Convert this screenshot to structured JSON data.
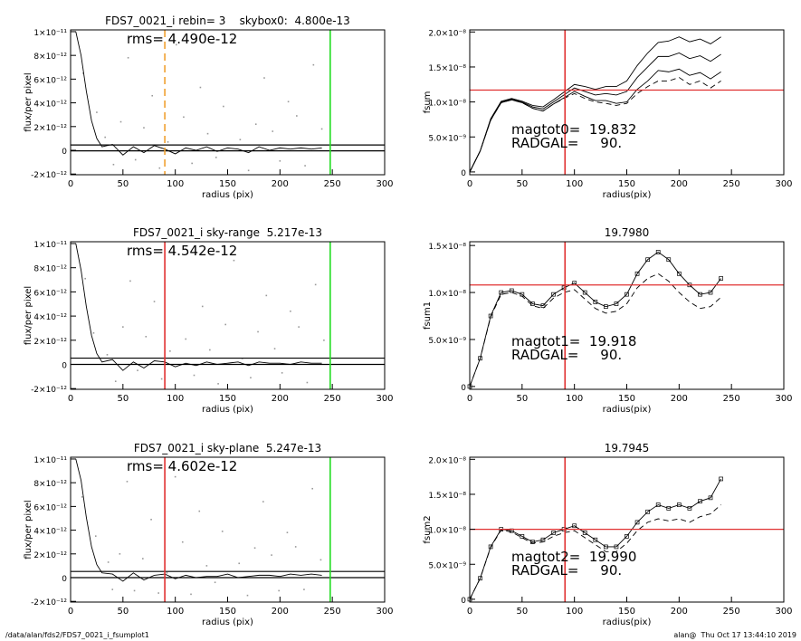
{
  "chart_data": [
    {
      "type": "profile",
      "title": "FDS7_0021_i rebin= 3    skybox0:  4.800e-13",
      "annotations": [
        "rms= 4.490e-12"
      ],
      "xlabel": "radius (pix)",
      "ylabel": "flux/per pixel",
      "xlim": [
        0,
        300
      ],
      "ylim": [
        -2.06e-12,
        1.015e-11
      ],
      "xticks": [
        0,
        50,
        100,
        150,
        200,
        250,
        300
      ],
      "yticks": [
        {
          "value": -2e-12,
          "label": "-2×10⁻¹²"
        },
        0,
        {
          "value": 2e-12,
          "label": "2×10⁻¹²"
        },
        {
          "value": 4e-12,
          "label": "4×10⁻¹²"
        },
        {
          "value": 6e-12,
          "label": "6×10⁻¹²"
        },
        {
          "value": 8e-12,
          "label": "8×10⁻¹²"
        },
        {
          "value": 1e-11,
          "label": "1×10⁻¹¹"
        }
      ],
      "points": {
        "color": "#999999",
        "x": [
          12,
          25,
          33,
          41,
          48,
          55,
          62,
          70,
          78,
          85,
          93,
          101,
          108,
          116,
          124,
          131,
          139,
          146,
          154,
          162,
          170,
          177,
          185,
          193,
          200,
          208,
          216,
          224,
          232,
          240
        ],
        "values": [
          6.5e-12,
          3.2e-12,
          1.1e-12,
          -1.2e-12,
          2.4e-12,
          7.8e-12,
          -8e-13,
          1.9e-12,
          4.6e-12,
          -1.5e-12,
          7e-13,
          8.9e-12,
          2.8e-12,
          -1.1e-12,
          5.3e-12,
          1.4e-12,
          -6e-13,
          3.7e-12,
          9.4e-12,
          9e-13,
          -1.7e-12,
          2.2e-12,
          6.1e-12,
          1.6e-12,
          -9e-13,
          4.1e-12,
          2.9e-12,
          -1.3e-12,
          7.2e-12,
          1.8e-12
        ]
      },
      "x": [
        5,
        10,
        15,
        20,
        25,
        30,
        40,
        50,
        60,
        70,
        80,
        90,
        100,
        110,
        120,
        130,
        140,
        150,
        160,
        170,
        180,
        190,
        200,
        210,
        220,
        230,
        240
      ],
      "series": [
        {
          "color": "#000000",
          "values": [
            1e-11,
            8e-12,
            5e-12,
            2.5e-12,
            1e-12,
            3e-13,
            5e-13,
            -4e-13,
            3e-13,
            -2e-13,
            4e-13,
            1e-13,
            -3e-13,
            2e-13,
            0,
            3e-13,
            -1e-13,
            2e-13,
            1e-13,
            -2e-13,
            3e-13,
            0,
            2e-13,
            1e-13,
            2e-13,
            1e-13,
            2e-13
          ]
        }
      ],
      "hlines": [
        {
          "value": 4.5e-13,
          "color": "#000000"
        },
        {
          "value": -5e-14,
          "color": "#000000"
        }
      ],
      "vlines": [
        {
          "value": 90,
          "color": "#f0a030",
          "dash": true
        },
        {
          "value": 248,
          "color": "#22dd22"
        }
      ]
    },
    {
      "type": "profile",
      "title": "FDS7_0021_i sky-range  5.217e-13",
      "annotations": [
        "rms= 4.542e-12"
      ],
      "xlabel": "radius (pix)",
      "ylabel": "flux/per pixel",
      "xlim": [
        0,
        300
      ],
      "ylim": [
        -2.06e-12,
        1.015e-11
      ],
      "xticks": [
        0,
        50,
        100,
        150,
        200,
        250,
        300
      ],
      "yticks": [
        {
          "value": -2e-12,
          "label": "-2×10⁻¹²"
        },
        0,
        {
          "value": 2e-12,
          "label": "2×10⁻¹²"
        },
        {
          "value": 4e-12,
          "label": "4×10⁻¹²"
        },
        {
          "value": 6e-12,
          "label": "6×10⁻¹²"
        },
        {
          "value": 8e-12,
          "label": "8×10⁻¹²"
        },
        {
          "value": 1e-11,
          "label": "1×10⁻¹¹"
        }
      ],
      "points": {
        "color": "#999999",
        "x": [
          14,
          22,
          35,
          43,
          50,
          57,
          64,
          72,
          80,
          87,
          95,
          103,
          110,
          118,
          126,
          133,
          141,
          148,
          156,
          164,
          172,
          179,
          187,
          195,
          202,
          210,
          218,
          226,
          234,
          242
        ],
        "values": [
          7.1e-12,
          2.6e-12,
          8e-13,
          -1.4e-12,
          3.1e-12,
          6.9e-12,
          -5e-13,
          2.3e-12,
          5.2e-12,
          -1.2e-12,
          1.1e-12,
          9.1e-12,
          2.1e-12,
          -9e-13,
          4.8e-12,
          1.2e-12,
          -1.6e-12,
          3.3e-12,
          8.6e-12,
          5e-13,
          -1.1e-12,
          2.7e-12,
          5.7e-12,
          1.3e-12,
          -7e-13,
          4.4e-12,
          3.1e-12,
          -1.5e-12,
          6.6e-12,
          2e-12
        ]
      },
      "x": [
        5,
        10,
        15,
        20,
        25,
        30,
        40,
        50,
        60,
        70,
        80,
        90,
        100,
        110,
        120,
        130,
        140,
        150,
        160,
        170,
        180,
        190,
        200,
        210,
        220,
        230,
        240
      ],
      "series": [
        {
          "color": "#000000",
          "values": [
            1e-11,
            7.8e-12,
            4.8e-12,
            2.4e-12,
            9e-13,
            2e-13,
            4e-13,
            -5e-13,
            2e-13,
            -3e-13,
            3e-13,
            2e-13,
            -2e-13,
            1e-13,
            -1e-13,
            2e-13,
            0,
            1e-13,
            2e-13,
            -1e-13,
            2e-13,
            1e-13,
            1e-13,
            0,
            2e-13,
            1e-13,
            1e-13
          ]
        }
      ],
      "hlines": [
        {
          "value": 5.2e-13,
          "color": "#000000"
        },
        {
          "value": 0,
          "color": "#000000"
        }
      ],
      "vlines": [
        {
          "value": 90,
          "color": "#e03030"
        },
        {
          "value": 248,
          "color": "#22dd22"
        }
      ]
    },
    {
      "type": "profile",
      "title": "FDS7_0021_i sky-plane  5.247e-13",
      "annotations": [
        "rms= 4.602e-12"
      ],
      "xlabel": "radius (pix)",
      "ylabel": "flux/per pixel",
      "xlim": [
        0,
        300
      ],
      "ylim": [
        -2.06e-12,
        1.015e-11
      ],
      "xticks": [
        0,
        50,
        100,
        150,
        200,
        250,
        300
      ],
      "yticks": [
        {
          "value": -2e-12,
          "label": "-2×10⁻¹²"
        },
        0,
        {
          "value": 2e-12,
          "label": "2×10⁻¹²"
        },
        {
          "value": 4e-12,
          "label": "4×10⁻¹²"
        },
        {
          "value": 6e-12,
          "label": "6×10⁻¹²"
        },
        {
          "value": 8e-12,
          "label": "8×10⁻¹²"
        },
        {
          "value": 1e-11,
          "label": "1×10⁻¹¹"
        }
      ],
      "points": {
        "color": "#999999",
        "x": [
          11,
          24,
          36,
          40,
          47,
          54,
          61,
          69,
          77,
          84,
          92,
          100,
          107,
          115,
          123,
          130,
          138,
          145,
          153,
          161,
          169,
          176,
          184,
          192,
          199,
          207,
          215,
          223,
          231,
          239
        ],
        "values": [
          6.8e-12,
          3.5e-12,
          1.3e-12,
          -1e-12,
          2e-12,
          8.1e-12,
          -1.1e-12,
          1.6e-12,
          4.9e-12,
          -1.3e-12,
          4e-13,
          8.5e-12,
          3e-12,
          -1.4e-12,
          5.6e-12,
          1e-12,
          -4e-13,
          3.9e-12,
          9.2e-12,
          1.2e-12,
          -1.5e-12,
          2.5e-12,
          6.4e-12,
          1.9e-12,
          -1.1e-12,
          3.8e-12,
          2.6e-12,
          -1e-12,
          7.5e-12,
          1.5e-12
        ]
      },
      "x": [
        5,
        10,
        15,
        20,
        25,
        30,
        40,
        50,
        60,
        70,
        80,
        90,
        100,
        110,
        120,
        130,
        140,
        150,
        160,
        170,
        180,
        190,
        200,
        210,
        220,
        230,
        240
      ],
      "series": [
        {
          "color": "#000000",
          "values": [
            1e-11,
            8.2e-12,
            5.1e-12,
            2.6e-12,
            1.1e-12,
            4e-13,
            3e-13,
            -3e-13,
            4e-13,
            -2e-13,
            2e-13,
            3e-13,
            -1e-13,
            2e-13,
            0,
            1e-13,
            1e-13,
            3e-13,
            0,
            1e-13,
            2e-13,
            2e-13,
            1e-13,
            3e-13,
            2e-13,
            3e-13,
            2e-13
          ]
        }
      ],
      "hlines": [
        {
          "value": 5.2e-13,
          "color": "#000000"
        },
        {
          "value": 0,
          "color": "#000000"
        }
      ],
      "vlines": [
        {
          "value": 90,
          "color": "#e03030"
        },
        {
          "value": 248,
          "color": "#22dd22"
        }
      ]
    },
    {
      "type": "fsum",
      "annotations": [
        "magtot0=  19.832",
        "RADGAL=     90."
      ],
      "xlabel": "radius(pix)",
      "ylabel": "fsum",
      "xlim": [
        0,
        300
      ],
      "ylim": [
        -4e-10,
        2.03e-08
      ],
      "xticks": [
        0,
        50,
        100,
        150,
        200,
        250,
        300
      ],
      "yticks": [
        0,
        {
          "value": 5e-09,
          "label": "5.0×10⁻⁹"
        },
        {
          "value": 1e-08,
          "label": "1.0×10⁻⁸"
        },
        {
          "value": 1.5e-08,
          "label": "1.5×10⁻⁸"
        },
        {
          "value": 2e-08,
          "label": "2.0×10⁻⁸"
        }
      ],
      "x": [
        0,
        10,
        20,
        30,
        40,
        50,
        60,
        70,
        80,
        90,
        100,
        110,
        120,
        130,
        140,
        150,
        160,
        170,
        180,
        190,
        200,
        210,
        220,
        230,
        240
      ],
      "series": [
        {
          "color": "#000000",
          "marker": true,
          "values": [
            0,
            3e-09,
            7.5e-09,
            1e-08,
            1.04e-08,
            1e-08,
            9.3e-09,
            9e-09,
            1e-08,
            1.1e-08,
            1.2e-08,
            1.15e-08,
            1.1e-08,
            1.12e-08,
            1.1e-08,
            1.15e-08,
            1.35e-08,
            1.5e-08,
            1.65e-08,
            1.65e-08,
            1.7e-08,
            1.62e-08,
            1.66e-08,
            1.58e-08,
            1.68e-08
          ]
        },
        {
          "color": "#000000",
          "values": [
            0,
            3e-09,
            7.6e-09,
            1.01e-08,
            1.05e-08,
            1.01e-08,
            9.5e-09,
            9.3e-09,
            1.03e-08,
            1.14e-08,
            1.25e-08,
            1.22e-08,
            1.18e-08,
            1.22e-08,
            1.22e-08,
            1.3e-08,
            1.52e-08,
            1.7e-08,
            1.85e-08,
            1.87e-08,
            1.93e-08,
            1.86e-08,
            1.9e-08,
            1.83e-08,
            1.93e-08
          ]
        },
        {
          "color": "#000000",
          "values": [
            0,
            3e-09,
            7.4e-09,
            9.9e-09,
            1.03e-08,
            9.9e-09,
            9.1e-09,
            8.7e-09,
            9.7e-09,
            1.06e-08,
            1.15e-08,
            1.08e-08,
            1.02e-08,
            1.02e-08,
            9.8e-09,
            1e-08,
            1.18e-08,
            1.3e-08,
            1.45e-08,
            1.43e-08,
            1.47e-08,
            1.38e-08,
            1.42e-08,
            1.33e-08,
            1.43e-08
          ]
        },
        {
          "color": "#000000",
          "dash": true,
          "values": [
            0,
            3e-09,
            7.4e-09,
            9.9e-09,
            1.03e-08,
            9.9e-09,
            9.1e-09,
            8.7e-09,
            9.7e-09,
            1.05e-08,
            1.12e-08,
            1.05e-08,
            1e-08,
            9.8e-09,
            9.5e-09,
            9.8e-09,
            1.12e-08,
            1.22e-08,
            1.3e-08,
            1.3e-08,
            1.35e-08,
            1.25e-08,
            1.3e-08,
            1.2e-08,
            1.3e-08
          ]
        }
      ],
      "hlines": [
        {
          "value": 1.17e-08,
          "color": "#e03030"
        }
      ],
      "vlines": [
        {
          "value": 91,
          "color": "#e03030"
        }
      ]
    },
    {
      "type": "fsum",
      "title": "19.7980",
      "annotations": [
        "magtot1=  19.918",
        "RADGAL=     90."
      ],
      "xlabel": "radius(pix)",
      "ylabel": "fsum1",
      "xlim": [
        0,
        300
      ],
      "ylim": [
        -3e-10,
        1.54e-08
      ],
      "xticks": [
        0,
        50,
        100,
        150,
        200,
        250,
        300
      ],
      "yticks": [
        0,
        {
          "value": 5e-09,
          "label": "5.0×10⁻⁹"
        },
        {
          "value": 1e-08,
          "label": "1.0×10⁻⁸"
        },
        {
          "value": 1.5e-08,
          "label": "1.5×10⁻⁸"
        }
      ],
      "x": [
        0,
        10,
        20,
        30,
        40,
        50,
        60,
        70,
        80,
        90,
        100,
        110,
        120,
        130,
        140,
        150,
        160,
        170,
        180,
        190,
        200,
        210,
        220,
        230,
        240
      ],
      "series": [
        {
          "color": "#000000",
          "marker": true,
          "values": [
            0,
            3e-09,
            7.5e-09,
            1e-08,
            1.02e-08,
            9.8e-09,
            8.8e-09,
            8.6e-09,
            9.8e-09,
            1.05e-08,
            1.1e-08,
            1e-08,
            9e-09,
            8.5e-09,
            8.8e-09,
            9.8e-09,
            1.2e-08,
            1.35e-08,
            1.43e-08,
            1.35e-08,
            1.2e-08,
            1.08e-08,
            9.8e-09,
            1e-08,
            1.15e-08
          ]
        },
        {
          "color": "#000000",
          "dash": true,
          "values": [
            0,
            3e-09,
            7.4e-09,
            9.8e-09,
            1e-08,
            9.6e-09,
            8.6e-09,
            8.3e-09,
            9.4e-09,
            1e-08,
            1.03e-08,
            9.3e-09,
            8.3e-09,
            7.8e-09,
            8e-09,
            8.8e-09,
            1.05e-08,
            1.15e-08,
            1.2e-08,
            1.12e-08,
            1e-08,
            9e-09,
            8.3e-09,
            8.5e-09,
            9.5e-09
          ]
        }
      ],
      "hlines": [
        {
          "value": 1.08e-08,
          "color": "#e03030"
        }
      ],
      "vlines": [
        {
          "value": 91,
          "color": "#e03030"
        }
      ]
    },
    {
      "type": "fsum",
      "title": "19.7945",
      "annotations": [
        "magtot2=  19.990",
        "RADGAL=     90."
      ],
      "xlabel": "radius(pix)",
      "ylabel": "fsum2",
      "xlim": [
        0,
        300
      ],
      "ylim": [
        -4e-10,
        2.03e-08
      ],
      "xticks": [
        0,
        50,
        100,
        150,
        200,
        250,
        300
      ],
      "yticks": [
        0,
        {
          "value": 5e-09,
          "label": "5.0×10⁻⁹"
        },
        {
          "value": 1e-08,
          "label": "1.0×10⁻⁸"
        },
        {
          "value": 1.5e-08,
          "label": "1.5×10⁻⁸"
        },
        {
          "value": 2e-08,
          "label": "2.0×10⁻⁸"
        }
      ],
      "x": [
        0,
        10,
        20,
        30,
        40,
        50,
        60,
        70,
        80,
        90,
        100,
        110,
        120,
        130,
        140,
        150,
        160,
        170,
        180,
        190,
        200,
        210,
        220,
        230,
        240
      ],
      "series": [
        {
          "color": "#000000",
          "marker": true,
          "values": [
            0,
            3e-09,
            7.5e-09,
            1e-08,
            9.8e-09,
            9e-09,
            8.2e-09,
            8.5e-09,
            9.5e-09,
            1e-08,
            1.05e-08,
            9.5e-09,
            8.5e-09,
            7.5e-09,
            7.5e-09,
            9e-09,
            1.1e-08,
            1.25e-08,
            1.35e-08,
            1.3e-08,
            1.35e-08,
            1.3e-08,
            1.4e-08,
            1.45e-08,
            1.72e-08
          ]
        },
        {
          "color": "#000000",
          "dash": true,
          "values": [
            0,
            3e-09,
            7.4e-09,
            9.9e-09,
            9.6e-09,
            8.8e-09,
            8e-09,
            8.2e-09,
            9e-09,
            9.5e-09,
            9.8e-09,
            8.8e-09,
            7.8e-09,
            6.8e-09,
            6.8e-09,
            8e-09,
            9.8e-09,
            1.1e-08,
            1.15e-08,
            1.12e-08,
            1.15e-08,
            1.1e-08,
            1.18e-08,
            1.22e-08,
            1.35e-08
          ]
        }
      ],
      "hlines": [
        {
          "value": 1e-08,
          "color": "#e03030"
        }
      ],
      "vlines": [
        {
          "value": 91,
          "color": "#e03030"
        }
      ]
    }
  ],
  "footer": {
    "path": "/data/alan/fds2/FDS7_0021_i_fsumplot1",
    "stamp": "alan@  Thu Oct 17 13:44:10 2019"
  }
}
